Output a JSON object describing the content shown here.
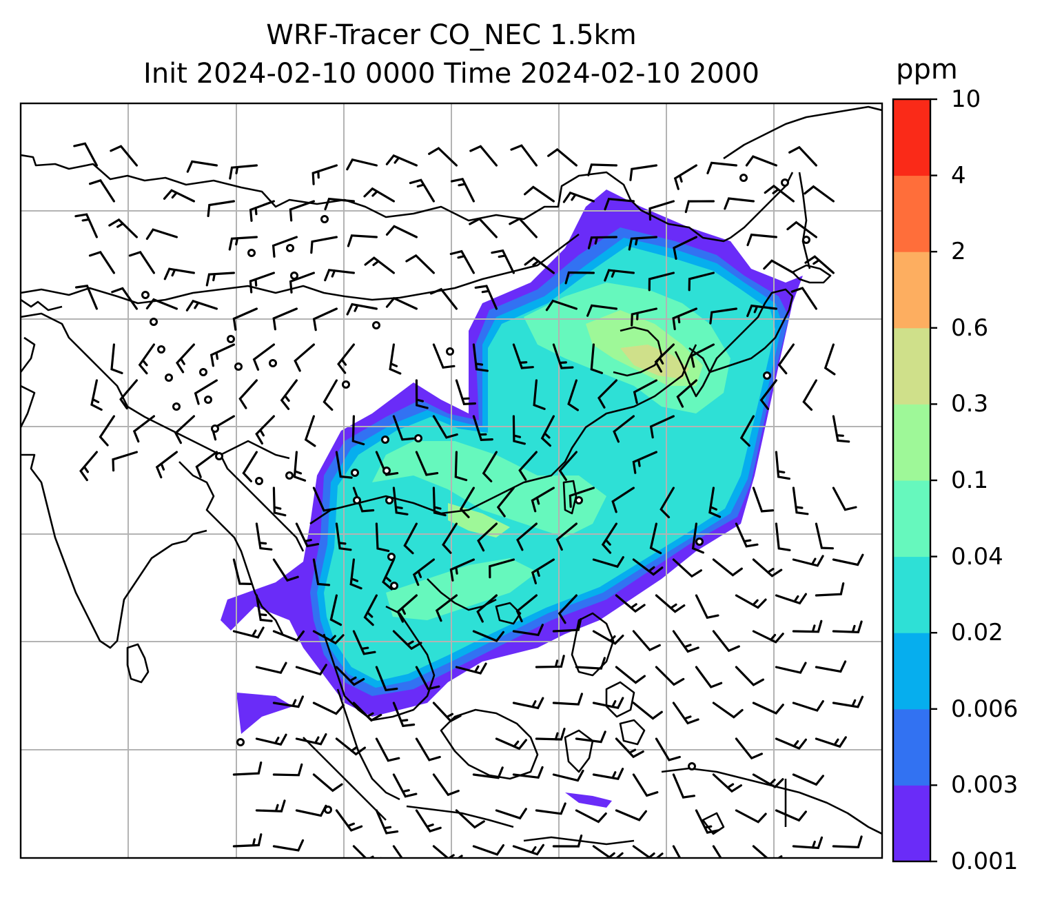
{
  "title": {
    "line1": "WRF-Tracer CO_NEC 1.5km",
    "line2": "Init 2024-02-10 0000 Time 2024-02-10 2000"
  },
  "colorbar": {
    "unit": "ppm",
    "levels": [
      "0.001",
      "0.003",
      "0.006",
      "0.02",
      "0.04",
      "0.1",
      "0.3",
      "0.6",
      "2",
      "4",
      "10"
    ],
    "colors": [
      "#6a2cf8",
      "#3272f2",
      "#06aeee",
      "#2ee0d6",
      "#66f8bd",
      "#9ef898",
      "#cfe08a",
      "#fdae60",
      "#ff6e3a",
      "#fa2a18"
    ]
  },
  "plume_colors": {
    "outer": "#6a2cf8",
    "level2": "#3272f2",
    "level3": "#06aeee",
    "main": "#2ee0d6",
    "high": "#66f8bd",
    "peak": "#9ef898",
    "max": "#cfe08a"
  }
}
